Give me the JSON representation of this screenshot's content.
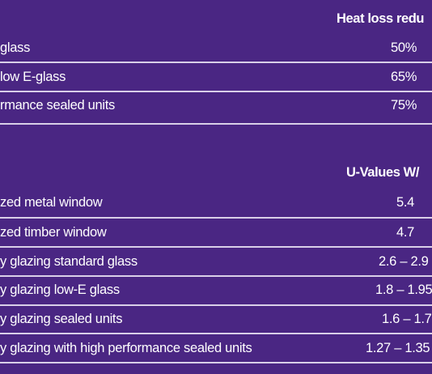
{
  "table1": {
    "header": "Heat loss redu",
    "rows": [
      {
        "label": "glass",
        "value": "50%"
      },
      {
        "label": "low E-glass",
        "value": "65%"
      },
      {
        "label": "rmance sealed units",
        "value": "75%"
      }
    ]
  },
  "table2": {
    "header": "U-Values W/",
    "rows": [
      {
        "label": "zed metal window",
        "value": "5.4"
      },
      {
        "label": "zed timber window",
        "value": "4.7"
      },
      {
        "label": "y glazing standard glass",
        "value": "2.6 – 2.9"
      },
      {
        "label": "y glazing low-E glass",
        "value": "1.8 – 1.95"
      },
      {
        "label": "y glazing sealed units",
        "value": "1.6 – 1.7"
      },
      {
        "label": "y glazing with high performance sealed units",
        "value": "1.27 – 1.35"
      }
    ]
  }
}
